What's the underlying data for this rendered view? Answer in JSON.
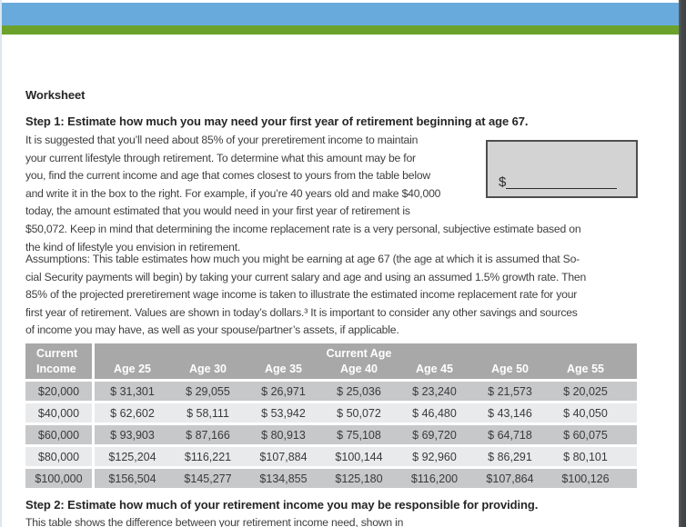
{
  "worksheet_label": "Worksheet",
  "step1": {
    "heading": "Step 1: Estimate how much you may need your first year of retirement beginning at age 67.",
    "body": "It is suggested that you’ll need about 85% of your preretirement income to maintain\nyour current lifestyle through retirement. To determine what this amount may be for\nyou, find the current income and age that comes closest to yours from the table below\nand write it in the box to the right. For example, if you’re 40 years old and make $40,000\ntoday, the amount estimated that you would need in your first year of retirement is\n$50,072. Keep in mind that determining the income replacement rate is a very personal, subjective estimate based on\nthe kind of lifestyle you envision in retirement.",
    "box_prefix": "$"
  },
  "assumptions": "Assumptions: This table estimates how much you might be earning at age 67 (the age at which it is assumed that So-\ncial Security payments will begin) by taking your current salary and age and using an assumed 1.5% growth rate. Then\n85% of the projected preretirement wage income is taken to illustrate the estimated income replacement rate for your\nfirst year of retirement. Values are shown in today’s dollars.³ It is important to consider any other savings and sources\nof income you may have, as well as your spouse/partner’s assets, if applicable.",
  "table": {
    "col1_header_line1": "Current",
    "col1_header_line2": "Income",
    "age_group_header": "Current Age",
    "age_headers": [
      "Age 25",
      "Age 30",
      "Age 35",
      "Age 40",
      "Age 45",
      "Age 50",
      "Age 55"
    ],
    "rows": [
      {
        "income": "$20,000",
        "values": [
          "$ 31,301",
          "$ 29,055",
          "$ 26,971",
          "$ 25,036",
          "$ 23,240",
          "$ 21,573",
          "$ 20,025"
        ]
      },
      {
        "income": "$40,000",
        "values": [
          "$ 62,602",
          "$ 58,111",
          "$ 53,942",
          "$ 50,072",
          "$ 46,480",
          "$ 43,146",
          "$ 40,050"
        ]
      },
      {
        "income": "$60,000",
        "values": [
          "$ 93,903",
          "$ 87,166",
          "$ 80,913",
          "$ 75,108",
          "$ 69,720",
          "$ 64,718",
          "$ 60,075"
        ]
      },
      {
        "income": "$80,000",
        "values": [
          "$125,204",
          "$116,221",
          "$107,884",
          "$100,144",
          "$ 92,960",
          "$ 86,291",
          "$ 80,101"
        ]
      },
      {
        "income": "$100,000",
        "values": [
          "$156,504",
          "$145,277",
          "$134,855",
          "$125,180",
          "$116,200",
          "$107,864",
          "$100,126"
        ]
      }
    ]
  },
  "step2": {
    "heading": "Step 2: Estimate how much of your retirement income you may be responsible for providing.",
    "body": "This table shows the difference between your retirement income need, shown in"
  },
  "colors": {
    "page_bg": "#ffffff",
    "blue_bar": "#69aadd",
    "green_bar": "#6ca22c",
    "table_header_bg": "#a8a8a8",
    "header_text": "#ffffff",
    "row_dark": "#c7c8ca",
    "row_light": "#e8eaeb",
    "box_bg": "#d3d3d3",
    "box_border": "#4e4e4e",
    "left_edge": "#dbe6f0",
    "right_edge": "#45484a",
    "heading_text": "#262626",
    "body_text": "#3e3e40"
  }
}
